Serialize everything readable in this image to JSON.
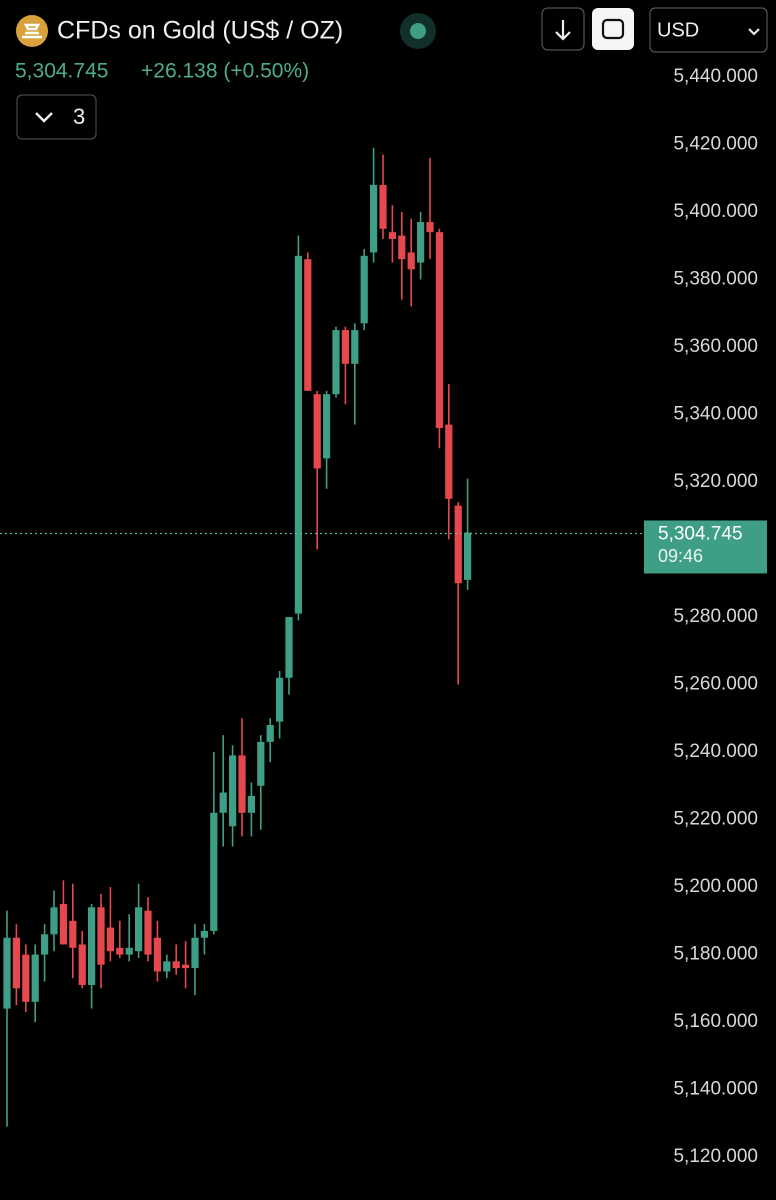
{
  "chart_data": {
    "type": "candlestick",
    "title": "CFDs on Gold (US$ / OZ)",
    "change": "+26.138 (+0.50%)",
    "interval_count": "3",
    "currency": "USD",
    "countdown": "09:46",
    "last_price": {
      "value": 5304.745,
      "label": "5,304.745"
    },
    "up_color": "#3f9f86",
    "down_color": "#e5484d",
    "open": [
      5164,
      5185,
      5180,
      5166,
      5180,
      5186,
      5195,
      5190,
      5183,
      5171,
      5194,
      5188,
      5182,
      5180,
      5181,
      5193,
      5185,
      5175,
      5178,
      5177,
      5176,
      5185,
      5187,
      5222,
      5218,
      5239,
      5222,
      5230,
      5243,
      5249,
      5262,
      5281,
      5386,
      5346,
      5327,
      5346,
      5365,
      5355,
      5367,
      5388,
      5408,
      5394,
      5393,
      5388,
      5385,
      5397,
      5394,
      5337,
      5313,
      5291
    ],
    "high": [
      5193,
      5189,
      5183,
      5183,
      5189,
      5199,
      5202,
      5201,
      5187,
      5195,
      5198,
      5200,
      5190,
      5192,
      5201,
      5197,
      5190,
      5180,
      5183,
      5184,
      5189,
      5189,
      5240,
      5245,
      5242,
      5250,
      5231,
      5245,
      5250,
      5264,
      5280,
      5393,
      5388,
      5347,
      5347,
      5366,
      5366,
      5367,
      5389,
      5419,
      5417,
      5402,
      5400,
      5398,
      5400,
      5416,
      5395,
      5349,
      5314,
      5321
    ],
    "low": [
      5129,
      5165,
      5163,
      5160,
      5172,
      5181,
      5183,
      5173,
      5170,
      5164,
      5170,
      5178,
      5179,
      5178,
      5179,
      5178,
      5172,
      5173,
      5174,
      5170,
      5168,
      5180,
      5186,
      5212,
      5212,
      5215,
      5215,
      5217,
      5237,
      5244,
      5257,
      5279,
      5347,
      5300,
      5318,
      5345,
      5343,
      5337,
      5365,
      5385,
      5392,
      5385,
      5374,
      5372,
      5380,
      5386,
      5330,
      5303,
      5260,
      5288
    ],
    "close": [
      5185,
      5170,
      5166,
      5180,
      5186,
      5194,
      5183,
      5182,
      5171,
      5194,
      5177,
      5181,
      5180,
      5182,
      5194,
      5180,
      5175,
      5178,
      5176,
      5176,
      5185,
      5187,
      5222,
      5228,
      5239,
      5222,
      5227,
      5243,
      5248,
      5262,
      5280,
      5387,
      5347,
      5324,
      5346,
      5365,
      5355,
      5365,
      5387,
      5408,
      5395,
      5392,
      5386,
      5383,
      5397,
      5394,
      5336,
      5315,
      5290,
      5305
    ],
    "ylim": [
      5107.3,
      5445
    ],
    "yticks": [
      {
        "value": 5440,
        "label": "5,440.000"
      },
      {
        "value": 5420,
        "label": "5,420.000"
      },
      {
        "value": 5400,
        "label": "5,400.000"
      },
      {
        "value": 5380,
        "label": "5,380.000"
      },
      {
        "value": 5360,
        "label": "5,360.000"
      },
      {
        "value": 5340,
        "label": "5,340.000"
      },
      {
        "value": 5320,
        "label": "5,320.000"
      },
      {
        "value": 5280,
        "label": "5,280.000"
      },
      {
        "value": 5260,
        "label": "5,260.000"
      },
      {
        "value": 5240,
        "label": "5,240.000"
      },
      {
        "value": 5220,
        "label": "5,220.000"
      },
      {
        "value": 5200,
        "label": "5,200.000"
      },
      {
        "value": 5180,
        "label": "5,180.000"
      },
      {
        "value": 5160,
        "label": "5,160.000"
      },
      {
        "value": 5140,
        "label": "5,140.000"
      },
      {
        "value": 5120,
        "label": "5,120.000"
      }
    ]
  }
}
